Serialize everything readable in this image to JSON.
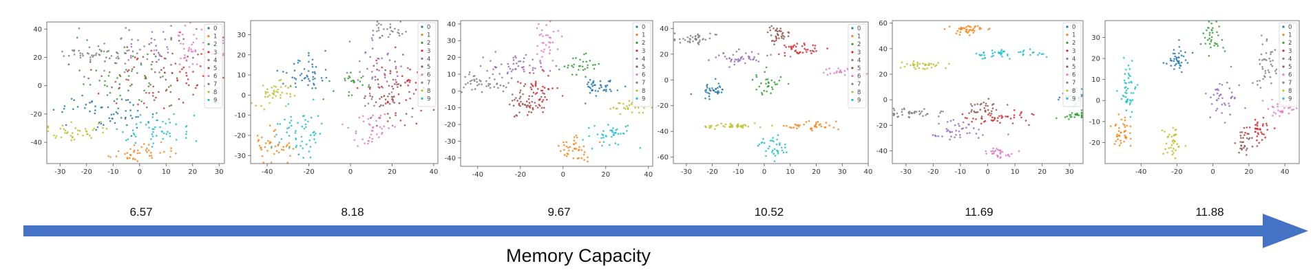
{
  "colors": {
    "classes": [
      "#1f77b4",
      "#ff7f0e",
      "#2ca02c",
      "#d62728",
      "#9467bd",
      "#8c564b",
      "#e377c2",
      "#7f7f7f",
      "#bcbd22",
      "#17becf"
    ],
    "arrow": "#4472c4"
  },
  "arrow_label": "Memory Capacity",
  "chart_data": [
    {
      "type": "scatter",
      "title": "",
      "score": "6.57",
      "xlim": [
        -35,
        32
      ],
      "ylim": [
        -55,
        45
      ],
      "xticks": [
        -30,
        -20,
        -10,
        0,
        10,
        20,
        30
      ],
      "xtick_labels": [
        "-30",
        "-20",
        "-10",
        "0",
        "10",
        "20",
        "30"
      ],
      "yticks": [
        -40,
        -20,
        0,
        20,
        40
      ],
      "ytick_labels": [
        "-40",
        "-20",
        "0",
        "20",
        "40"
      ],
      "legend": [
        "0",
        "1",
        "2",
        "3",
        "4",
        "5",
        "6",
        "7",
        "8",
        "9"
      ],
      "clusters": [
        {
          "label": 0,
          "cx": -12,
          "cy": -18,
          "sx": 9,
          "sy": 7,
          "n": 60
        },
        {
          "label": 1,
          "cx": -2,
          "cy": -48,
          "sx": 6,
          "sy": 3,
          "n": 40
        },
        {
          "label": 2,
          "cx": -8,
          "cy": 10,
          "sx": 10,
          "sy": 12,
          "n": 50
        },
        {
          "label": 3,
          "cx": 12,
          "cy": 5,
          "sx": 10,
          "sy": 12,
          "n": 50
        },
        {
          "label": 4,
          "cx": 0,
          "cy": 25,
          "sx": 12,
          "sy": 8,
          "n": 50
        },
        {
          "label": 5,
          "cx": 5,
          "cy": 10,
          "sx": 12,
          "sy": 14,
          "n": 50
        },
        {
          "label": 6,
          "cx": 22,
          "cy": 30,
          "sx": 7,
          "sy": 8,
          "n": 50
        },
        {
          "label": 7,
          "cx": -20,
          "cy": 22,
          "sx": 6,
          "sy": 2,
          "n": 30
        },
        {
          "label": 8,
          "cx": -25,
          "cy": -32,
          "sx": 7,
          "sy": 3,
          "n": 40
        },
        {
          "label": 9,
          "cx": 6,
          "cy": -30,
          "sx": 7,
          "sy": 5,
          "n": 50
        }
      ]
    },
    {
      "type": "scatter",
      "title": "",
      "score": "8.18",
      "xlim": [
        -48,
        42
      ],
      "ylim": [
        -34,
        37
      ],
      "xticks": [
        -40,
        -20,
        0,
        20,
        40
      ],
      "xtick_labels": [
        "-40",
        "-20",
        "0",
        "20",
        "40"
      ],
      "yticks": [
        -30,
        -20,
        -10,
        0,
        10,
        20,
        30
      ],
      "ytick_labels": [
        "-30",
        "-20",
        "-10",
        "0",
        "10",
        "20",
        "30"
      ],
      "legend": [
        "0",
        "1",
        "2",
        "3",
        "4",
        "5",
        "6",
        "7",
        "8",
        "9"
      ],
      "clusters": [
        {
          "label": 0,
          "cx": -22,
          "cy": 10,
          "sx": 6,
          "sy": 5,
          "n": 50
        },
        {
          "label": 1,
          "cx": -38,
          "cy": -27,
          "sx": 5,
          "sy": 4,
          "n": 40
        },
        {
          "label": 2,
          "cx": 0,
          "cy": 6,
          "sx": 4,
          "sy": 3,
          "n": 20
        },
        {
          "label": 3,
          "cx": 22,
          "cy": 3,
          "sx": 8,
          "sy": 8,
          "n": 50
        },
        {
          "label": 4,
          "cx": 12,
          "cy": 10,
          "sx": 6,
          "sy": 10,
          "n": 50
        },
        {
          "label": 5,
          "cx": 18,
          "cy": 0,
          "sx": 6,
          "sy": 8,
          "n": 50
        },
        {
          "label": 6,
          "cx": 10,
          "cy": -17,
          "sx": 5,
          "sy": 4,
          "n": 40
        },
        {
          "label": 7,
          "cx": 18,
          "cy": 33,
          "sx": 5,
          "sy": 2,
          "n": 25
        },
        {
          "label": 8,
          "cx": -36,
          "cy": 1,
          "sx": 5,
          "sy": 4,
          "n": 40
        },
        {
          "label": 9,
          "cx": -25,
          "cy": -18,
          "sx": 6,
          "sy": 6,
          "n": 55
        }
      ]
    },
    {
      "type": "scatter",
      "title": "",
      "score": "9.67",
      "xlim": [
        -48,
        42
      ],
      "ylim": [
        -45,
        42
      ],
      "xticks": [
        -40,
        -20,
        0,
        20,
        40
      ],
      "xtick_labels": [
        "-40",
        "-20",
        "0",
        "20",
        "40"
      ],
      "yticks": [
        -40,
        -30,
        -20,
        -10,
        0,
        10,
        20,
        30,
        40
      ],
      "ytick_labels": [
        "-40",
        "-30",
        "-20",
        "-10",
        "0",
        "10",
        "20",
        "30",
        "40"
      ],
      "legend": [
        "0",
        "1",
        "2",
        "3",
        "4",
        "5",
        "6",
        "7",
        "8",
        "9"
      ],
      "clusters": [
        {
          "label": 0,
          "cx": 18,
          "cy": 3,
          "sx": 5,
          "sy": 3,
          "n": 40
        },
        {
          "label": 1,
          "cx": 5,
          "cy": -35,
          "sx": 4,
          "sy": 4,
          "n": 40
        },
        {
          "label": 2,
          "cx": 8,
          "cy": 15,
          "sx": 4,
          "sy": 3,
          "n": 30
        },
        {
          "label": 3,
          "cx": -12,
          "cy": 0,
          "sx": 5,
          "sy": 6,
          "n": 50
        },
        {
          "label": 4,
          "cx": -22,
          "cy": 15,
          "sx": 6,
          "sy": 3,
          "n": 45
        },
        {
          "label": 5,
          "cx": -18,
          "cy": -6,
          "sx": 4,
          "sy": 4,
          "n": 40
        },
        {
          "label": 6,
          "cx": -8,
          "cy": 30,
          "sx": 3,
          "sy": 6,
          "n": 35
        },
        {
          "label": 7,
          "cx": -38,
          "cy": 5,
          "sx": 6,
          "sy": 3,
          "n": 45
        },
        {
          "label": 8,
          "cx": 32,
          "cy": -10,
          "sx": 5,
          "sy": 2,
          "n": 25
        },
        {
          "label": 9,
          "cx": 22,
          "cy": -26,
          "sx": 5,
          "sy": 4,
          "n": 40
        }
      ]
    },
    {
      "type": "scatter",
      "title": "",
      "score": "10.52",
      "xlim": [
        -35,
        40
      ],
      "ylim": [
        -65,
        45
      ],
      "xticks": [
        -30,
        -20,
        -10,
        0,
        10,
        20,
        30,
        40
      ],
      "xtick_labels": [
        "-30",
        "-20",
        "-10",
        "0",
        "10",
        "20",
        "30",
        "40"
      ],
      "yticks": [
        -60,
        -40,
        -20,
        0,
        20,
        40
      ],
      "ytick_labels": [
        "-60",
        "-40",
        "-20",
        "0",
        "20",
        "40"
      ],
      "legend": [
        "0",
        "1",
        "2",
        "3",
        "4",
        "5",
        "6",
        "7",
        "8",
        "9"
      ],
      "clusters": [
        {
          "label": 0,
          "cx": -20,
          "cy": -8,
          "sx": 3,
          "sy": 3,
          "n": 35
        },
        {
          "label": 1,
          "cx": 18,
          "cy": -36,
          "sx": 5,
          "sy": 2,
          "n": 35
        },
        {
          "label": 2,
          "cx": 2,
          "cy": -2,
          "sx": 3,
          "sy": 4,
          "n": 30
        },
        {
          "label": 3,
          "cx": 13,
          "cy": 25,
          "sx": 5,
          "sy": 3,
          "n": 40
        },
        {
          "label": 4,
          "cx": -10,
          "cy": 17,
          "sx": 6,
          "sy": 3,
          "n": 45
        },
        {
          "label": 5,
          "cx": 5,
          "cy": 35,
          "sx": 3,
          "sy": 4,
          "n": 35
        },
        {
          "label": 6,
          "cx": 30,
          "cy": 7,
          "sx": 4,
          "sy": 2,
          "n": 25
        },
        {
          "label": 7,
          "cx": -27,
          "cy": 32,
          "sx": 5,
          "sy": 2,
          "n": 40
        },
        {
          "label": 8,
          "cx": -12,
          "cy": -36,
          "sx": 6,
          "sy": 1,
          "n": 40
        },
        {
          "label": 9,
          "cx": 3,
          "cy": -52,
          "sx": 3,
          "sy": 5,
          "n": 35
        }
      ]
    },
    {
      "type": "scatter",
      "title": "",
      "score": "11.69",
      "xlim": [
        -35,
        35
      ],
      "ylim": [
        -50,
        62
      ],
      "xticks": [
        -30,
        -20,
        -10,
        0,
        10,
        20,
        30
      ],
      "xtick_labels": [
        "-30",
        "-20",
        "-10",
        "0",
        "10",
        "20",
        "30"
      ],
      "yticks": [
        -40,
        -20,
        0,
        20,
        40,
        60
      ],
      "ytick_labels": [
        "-40",
        "-20",
        "0",
        "20",
        "40",
        "60"
      ],
      "legend": [
        "0",
        "1",
        "2",
        "3",
        "4",
        "5",
        "6",
        "7",
        "8",
        "9"
      ],
      "clusters": [
        {
          "label": 0,
          "cx": 30,
          "cy": 2,
          "sx": 3,
          "sy": 3,
          "n": 25
        },
        {
          "label": 1,
          "cx": -7,
          "cy": 55,
          "sx": 4,
          "sy": 2,
          "n": 40
        },
        {
          "label": 2,
          "cx": 32,
          "cy": -12,
          "sx": 3,
          "sy": 2,
          "n": 25
        },
        {
          "label": 3,
          "cx": 5,
          "cy": -15,
          "sx": 6,
          "sy": 3,
          "n": 40
        },
        {
          "label": 4,
          "cx": -12,
          "cy": -25,
          "sx": 5,
          "sy": 4,
          "n": 40
        },
        {
          "label": 5,
          "cx": -2,
          "cy": -8,
          "sx": 3,
          "sy": 4,
          "n": 35
        },
        {
          "label": 6,
          "cx": 5,
          "cy": -42,
          "sx": 3,
          "sy": 2,
          "n": 30
        },
        {
          "label": 7,
          "cx": -27,
          "cy": -10,
          "sx": 5,
          "sy": 2,
          "n": 40
        },
        {
          "label": 8,
          "cx": -23,
          "cy": 27,
          "sx": 4,
          "sy": 1.5,
          "n": 35
        },
        {
          "label": 9,
          "cx": 7,
          "cy": 36,
          "sx": 6,
          "sy": 2,
          "n": 45
        }
      ]
    },
    {
      "type": "scatter",
      "title": "",
      "score": "11.88",
      "xlim": [
        -60,
        48
      ],
      "ylim": [
        -30,
        38
      ],
      "xticks": [
        -40,
        -20,
        0,
        20,
        40
      ],
      "xtick_labels": [
        "-40",
        "-20",
        "0",
        "20",
        "40"
      ],
      "yticks": [
        -20,
        -10,
        0,
        10,
        20,
        30
      ],
      "ytick_labels": [
        "-20",
        "-10",
        "0",
        "10",
        "20",
        "30"
      ],
      "legend": [
        "0",
        "1",
        "2",
        "3",
        "4",
        "5",
        "6",
        "7",
        "8",
        "9"
      ],
      "clusters": [
        {
          "label": 0,
          "cx": -20,
          "cy": 20,
          "sx": 4,
          "sy": 3,
          "n": 40
        },
        {
          "label": 1,
          "cx": -50,
          "cy": -14,
          "sx": 3,
          "sy": 4,
          "n": 40
        },
        {
          "label": 2,
          "cx": 0,
          "cy": 30,
          "sx": 3,
          "sy": 4,
          "n": 35
        },
        {
          "label": 3,
          "cx": 25,
          "cy": -14,
          "sx": 4,
          "sy": 3,
          "n": 35
        },
        {
          "label": 4,
          "cx": 5,
          "cy": 0,
          "sx": 4,
          "sy": 4,
          "n": 40
        },
        {
          "label": 5,
          "cx": 18,
          "cy": -20,
          "sx": 3,
          "sy": 3,
          "n": 30
        },
        {
          "label": 6,
          "cx": 38,
          "cy": -4,
          "sx": 5,
          "sy": 2,
          "n": 30
        },
        {
          "label": 7,
          "cx": 30,
          "cy": 15,
          "sx": 3,
          "sy": 6,
          "n": 40
        },
        {
          "label": 8,
          "cx": -23,
          "cy": -18,
          "sx": 2.5,
          "sy": 4,
          "n": 35
        },
        {
          "label": 9,
          "cx": -48,
          "cy": 5,
          "sx": 2.5,
          "sy": 6,
          "n": 45
        }
      ]
    }
  ]
}
